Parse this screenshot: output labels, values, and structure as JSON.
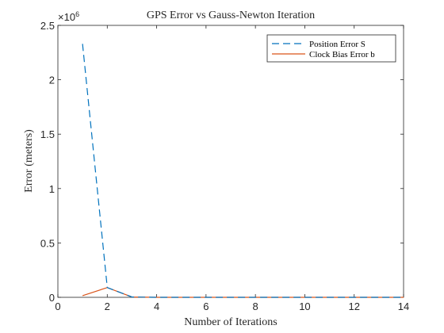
{
  "chart_data": {
    "type": "line",
    "title": "GPS Error vs Gauss-Newton Iteration",
    "xlabel": "Number of Iterations",
    "ylabel": "Error (meters)",
    "y_exponent_label": "×10",
    "y_exponent_power": "6",
    "xlim": [
      0,
      14
    ],
    "ylim": [
      0,
      2500000
    ],
    "x_ticks": [
      "0",
      "2",
      "4",
      "6",
      "8",
      "10",
      "12",
      "14"
    ],
    "y_ticks": [
      "0",
      "0.5",
      "1",
      "1.5",
      "2",
      "2.5"
    ],
    "grid": false,
    "legend_position": "top-right",
    "series": [
      {
        "name": "Position Error S",
        "color": "#0072BD",
        "style": "dashed",
        "x": [
          1,
          2,
          3,
          4,
          5,
          6,
          7,
          8,
          9,
          10,
          11,
          12,
          13,
          14
        ],
        "y": [
          2330000,
          90000,
          3000,
          0,
          0,
          0,
          0,
          0,
          0,
          0,
          0,
          0,
          0,
          0
        ]
      },
      {
        "name": "Clock Bias Error b",
        "color": "#D95319",
        "style": "solid",
        "x": [
          1,
          2,
          3,
          4,
          5,
          6,
          7,
          8,
          9,
          10,
          11,
          12,
          13,
          14
        ],
        "y": [
          15000,
          90000,
          3000,
          0,
          0,
          0,
          0,
          0,
          0,
          0,
          0,
          0,
          0,
          0
        ]
      }
    ]
  }
}
